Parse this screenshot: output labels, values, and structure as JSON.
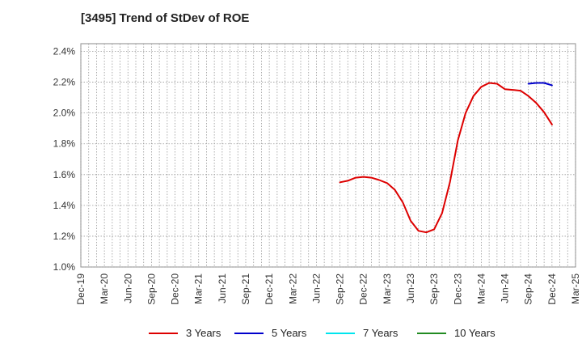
{
  "chart_data": {
    "type": "line",
    "title": "[3495]  Trend of StDev of ROE",
    "xlabel": "",
    "ylabel": "",
    "x_ticks": [
      "Dec-19",
      "Mar-20",
      "Jun-20",
      "Sep-20",
      "Dec-20",
      "Mar-21",
      "Jun-21",
      "Sep-21",
      "Dec-21",
      "Mar-22",
      "Jun-22",
      "Sep-22",
      "Dec-22",
      "Mar-23",
      "Jun-23",
      "Sep-23",
      "Dec-23",
      "Mar-24",
      "Jun-24",
      "Sep-24",
      "Dec-24",
      "Mar-25"
    ],
    "y_ticks": [
      "1.0%",
      "1.2%",
      "1.4%",
      "1.6%",
      "1.8%",
      "2.0%",
      "2.2%",
      "2.4%"
    ],
    "ylim": [
      1.0,
      2.45
    ],
    "grid": true,
    "legend_position": "bottom",
    "series": [
      {
        "name": "3 Years",
        "color": "#dd0000",
        "x": [
          "Sep-22",
          "Oct-22",
          "Nov-22",
          "Dec-22",
          "Jan-23",
          "Feb-23",
          "Mar-23",
          "Apr-23",
          "May-23",
          "Jun-23",
          "Jul-23",
          "Aug-23",
          "Sep-23",
          "Oct-23",
          "Nov-23",
          "Dec-23",
          "Jan-24",
          "Feb-24",
          "Mar-24",
          "Apr-24",
          "May-24",
          "Jun-24",
          "Jul-24",
          "Aug-24",
          "Sep-24",
          "Oct-24",
          "Nov-24",
          "Dec-24"
        ],
        "y": [
          1.55,
          1.56,
          1.58,
          1.585,
          1.58,
          1.565,
          1.545,
          1.5,
          1.42,
          1.3,
          1.235,
          1.225,
          1.245,
          1.35,
          1.55,
          1.82,
          2.0,
          2.11,
          2.17,
          2.195,
          2.19,
          2.155,
          2.15,
          2.145,
          2.11,
          2.065,
          2.005,
          1.925
        ]
      },
      {
        "name": "5 Years",
        "color": "#0000cc",
        "x": [
          "Sep-24",
          "Oct-24",
          "Nov-24",
          "Dec-24"
        ],
        "y": [
          2.19,
          2.195,
          2.195,
          2.18
        ]
      },
      {
        "name": "7 Years",
        "color": "#00e5ee",
        "x": [],
        "y": []
      },
      {
        "name": "10 Years",
        "color": "#228b22",
        "x": [],
        "y": []
      }
    ]
  }
}
